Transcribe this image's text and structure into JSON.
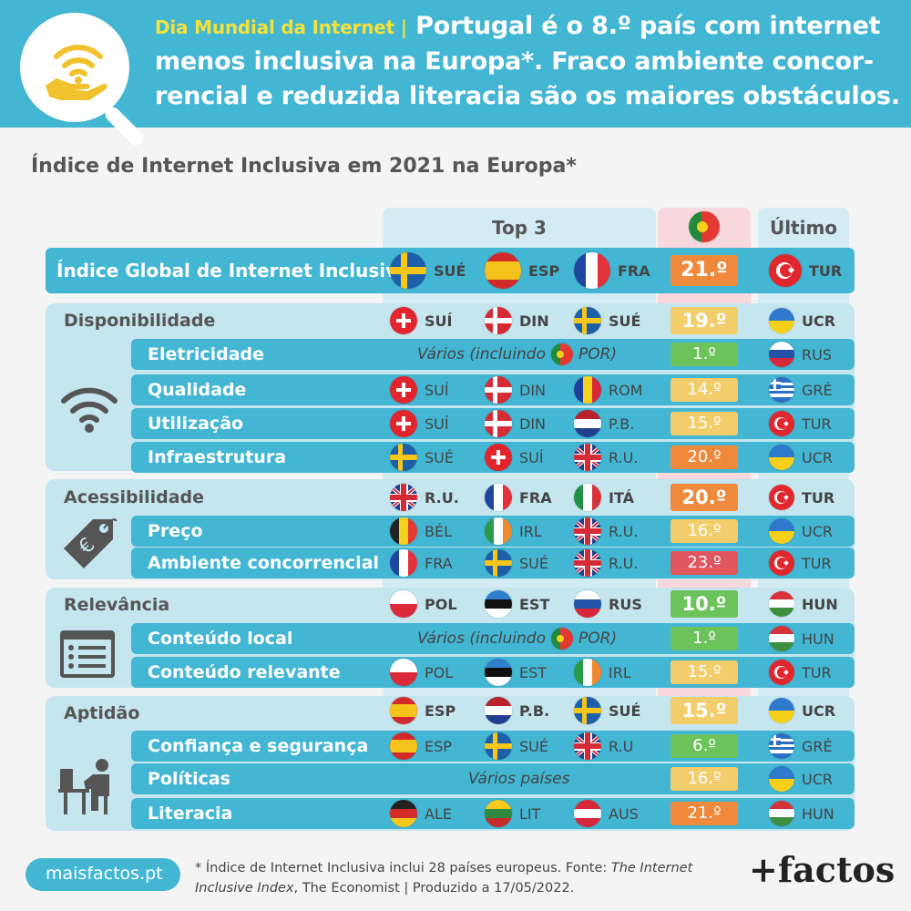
{
  "header": {
    "kicker": "Dia Mundial da Internet |",
    "headline": "Portugal é o 8.º país com internet menos inclusiva na Europa*. Fraco ambiente concor-rencial e reduzida literacia são os maiores obstáculos."
  },
  "subtitle": "Índice de Internet Inclusiva em 2021 na Europa*",
  "columns": {
    "top3": "Top 3",
    "last": "Último"
  },
  "colors": {
    "dark_orange": "#ef8a3c",
    "light_orange": "#f2cd6c",
    "green": "#6cc35c",
    "red": "#e0555e",
    "blue": "#43b6d3"
  },
  "rows": [
    {
      "label": "Índice Global de Internet Inclusiva",
      "top": [
        {
          "f": "swe",
          "c": "SUÉ"
        },
        {
          "f": "esp",
          "c": "ESP"
        },
        {
          "f": "fra",
          "c": "FRA"
        }
      ],
      "rank": "21.º",
      "color": "dark_orange",
      "last": {
        "f": "tur",
        "c": "TUR"
      }
    },
    {
      "label": "Disponibilidade",
      "top": [
        {
          "f": "sui",
          "c": "SUÍ"
        },
        {
          "f": "din",
          "c": "DIN"
        },
        {
          "f": "swe",
          "c": "SUÉ"
        }
      ],
      "rank": "19.º",
      "color": "light_orange",
      "last": {
        "f": "ukr",
        "c": "UCR"
      }
    },
    {
      "label": "Eletricidade",
      "varios_pre": "Vários (incluindo",
      "varios_post": "POR)",
      "rank": "1.º",
      "color": "green",
      "last": {
        "f": "rus",
        "c": "RUS"
      }
    },
    {
      "label": "Qualidade",
      "top": [
        {
          "f": "sui",
          "c": "SUÍ"
        },
        {
          "f": "din",
          "c": "DIN"
        },
        {
          "f": "rom",
          "c": "ROM"
        }
      ],
      "rank": "14.º",
      "color": "light_orange",
      "last": {
        "f": "gre",
        "c": "GRÉ"
      }
    },
    {
      "label": "Utilização",
      "top": [
        {
          "f": "sui",
          "c": "SUÍ"
        },
        {
          "f": "din",
          "c": "DIN"
        },
        {
          "f": "nld",
          "c": "P.B."
        }
      ],
      "rank": "15.º",
      "color": "light_orange",
      "last": {
        "f": "tur",
        "c": "TUR"
      }
    },
    {
      "label": "Infraestrutura",
      "top": [
        {
          "f": "swe",
          "c": "SUÉ"
        },
        {
          "f": "sui",
          "c": "SUÍ"
        },
        {
          "f": "gbr",
          "c": "R.U."
        }
      ],
      "rank": "20.º",
      "color": "dark_orange",
      "last": {
        "f": "ukr",
        "c": "UCR"
      }
    },
    {
      "label": "Acessibilidade",
      "top": [
        {
          "f": "gbr",
          "c": "R.U."
        },
        {
          "f": "fra",
          "c": "FRA"
        },
        {
          "f": "ita",
          "c": "ITÁ"
        }
      ],
      "rank": "20.º",
      "color": "dark_orange",
      "last": {
        "f": "tur",
        "c": "TUR"
      }
    },
    {
      "label": "Preço",
      "top": [
        {
          "f": "bel",
          "c": "BÉL"
        },
        {
          "f": "irl",
          "c": "IRL"
        },
        {
          "f": "gbr",
          "c": "R.U."
        }
      ],
      "rank": "16.º",
      "color": "light_orange",
      "last": {
        "f": "ukr",
        "c": "UCR"
      }
    },
    {
      "label": "Ambiente concorrencial",
      "top": [
        {
          "f": "fra",
          "c": "FRA"
        },
        {
          "f": "swe",
          "c": "SUÉ"
        },
        {
          "f": "gbr",
          "c": "R.U."
        }
      ],
      "rank": "23.º",
      "color": "red",
      "last": {
        "f": "tur",
        "c": "TUR"
      }
    },
    {
      "label": "Relevância",
      "top": [
        {
          "f": "pol",
          "c": "POL"
        },
        {
          "f": "est",
          "c": "EST"
        },
        {
          "f": "rus",
          "c": "RUS"
        }
      ],
      "rank": "10.º",
      "color": "green",
      "last": {
        "f": "hun",
        "c": "HUN"
      }
    },
    {
      "label": "Conteúdo local",
      "varios_pre": "Vários (incluindo",
      "varios_post": "POR)",
      "rank": "1.º",
      "color": "green",
      "last": {
        "f": "hun",
        "c": "HUN"
      }
    },
    {
      "label": "Conteúdo relevante",
      "top": [
        {
          "f": "pol",
          "c": "POL"
        },
        {
          "f": "est",
          "c": "EST"
        },
        {
          "f": "irl",
          "c": "IRL"
        }
      ],
      "rank": "15.º",
      "color": "light_orange",
      "last": {
        "f": "tur",
        "c": "TUR"
      }
    },
    {
      "label": "Aptidão",
      "top": [
        {
          "f": "esp",
          "c": "ESP"
        },
        {
          "f": "nld",
          "c": "P.B."
        },
        {
          "f": "swe",
          "c": "SUÉ"
        }
      ],
      "rank": "15.º",
      "color": "light_orange",
      "last": {
        "f": "ukr",
        "c": "UCR"
      }
    },
    {
      "label": "Confiança e segurança",
      "top": [
        {
          "f": "esp",
          "c": "ESP"
        },
        {
          "f": "swe",
          "c": "SUÉ"
        },
        {
          "f": "gbr",
          "c": "R.U"
        }
      ],
      "rank": "6.º",
      "color": "green",
      "last": {
        "f": "gre",
        "c": "GRÉ"
      }
    },
    {
      "label": "Políticas",
      "varios_pre": "Vários países",
      "varios_post": "",
      "rank": "16.º",
      "color": "light_orange",
      "last": {
        "f": "ukr",
        "c": "UCR"
      }
    },
    {
      "label": "Literacia",
      "top": [
        {
          "f": "deu",
          "c": "ALE"
        },
        {
          "f": "ltu",
          "c": "LIT"
        },
        {
          "f": "aut",
          "c": "AUS"
        }
      ],
      "rank": "21.º",
      "color": "dark_orange",
      "last": {
        "f": "hun",
        "c": "HUN"
      }
    }
  ],
  "footer": {
    "site": "maisfactos.pt",
    "note_1": "* Índice de Internet Inclusiva inclui 28 países europeus. Fonte: ",
    "note_source": "The Internet Inclusive Index",
    "note_2": ", The Economist | Produzido a 17/05/2022.",
    "brand": "+factos"
  }
}
